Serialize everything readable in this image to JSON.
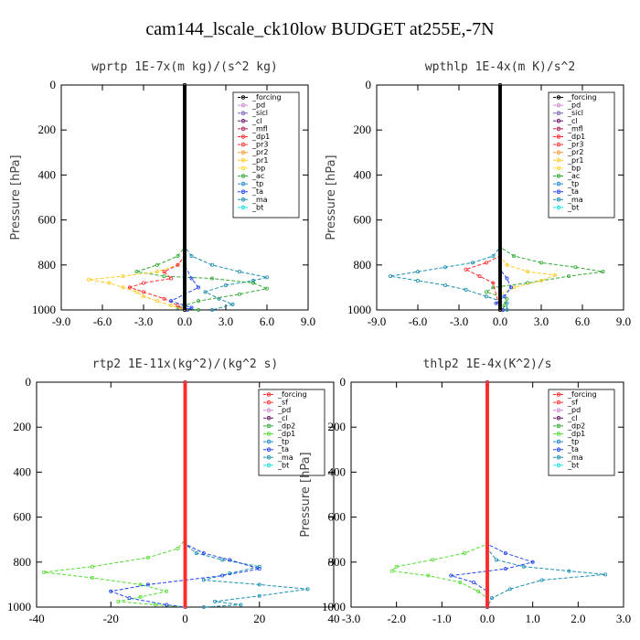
{
  "title": "cam144_lscale_ck10low  BUDGET at255E,-7N",
  "colors": {
    "forcing": "#000000",
    "pd": "#cc88cc",
    "sicl": "#7a5ab8",
    "cl": "#6a1a6a",
    "mfl": "#b0225a",
    "dp1": "#ff2a2a",
    "pr3": "#ff3a3a",
    "pr2": "#ff9933",
    "pr1": "#ffcc22",
    "bp": "#ffdd33",
    "ac": "#33aa33",
    "tp": "#2288cc",
    "ta": "#2244ee",
    "ma": "#1a8fb0",
    "bt": "#22dddd",
    "sf": "#ff3333",
    "dp2": "#33aa33",
    "dp1b": "#55dd33",
    "tp2": "#2288cc",
    "ta2": "#2233dd"
  },
  "chart_data": [
    {
      "type": "line",
      "title": "wprtp  1E-7x(m kg)/(s^2 kg)",
      "ylabel": "Pressure [hPa]",
      "xlim": [
        -9,
        9
      ],
      "ylim": [
        1000,
        0
      ],
      "xticks": [
        "-9.0",
        "-6.0",
        "-3.0",
        "0.0",
        "3.0",
        "6.0",
        "9.0"
      ],
      "yticks": [
        "0",
        "200",
        "400",
        "600",
        "800",
        "1000"
      ],
      "legend": [
        "_forcing",
        "_pd",
        "_sicl",
        "_cl",
        "_mfl",
        "_dp1",
        "_pr3",
        "_pr2",
        "_pr1",
        "_bp",
        "_ac",
        "_tp",
        "_ta",
        "_ma",
        "_bt"
      ],
      "legend_placement": "top-right",
      "series": [
        {
          "name": "_ma",
          "color": "#1a8fb0",
          "points": [
            [
              0,
              0
            ],
            [
              0,
              720
            ],
            [
              0.5,
              760
            ],
            [
              2.0,
              800
            ],
            [
              4.0,
              830
            ],
            [
              6.0,
              855
            ],
            [
              5.0,
              870
            ],
            [
              3.0,
              890
            ],
            [
              1.5,
              920
            ],
            [
              2.5,
              950
            ],
            [
              3.5,
              975
            ],
            [
              2.0,
              1000
            ]
          ]
        },
        {
          "name": "_ac",
          "color": "#33aa33",
          "points": [
            [
              0,
              0
            ],
            [
              0,
              720
            ],
            [
              -0.5,
              760
            ],
            [
              -2.0,
              800
            ],
            [
              -3.5,
              830
            ],
            [
              -1.5,
              850
            ],
            [
              2.0,
              860
            ],
            [
              5.0,
              880
            ],
            [
              6.0,
              905
            ],
            [
              4.0,
              930
            ],
            [
              1.0,
              960
            ],
            [
              -0.5,
              990
            ],
            [
              1.0,
              1000
            ]
          ]
        },
        {
          "name": "_pr1",
          "color": "#ffcc22",
          "points": [
            [
              0,
              0
            ],
            [
              0,
              760
            ],
            [
              -0.5,
              800
            ],
            [
              -2.0,
              830
            ],
            [
              -4.5,
              850
            ],
            [
              -7.0,
              865
            ],
            [
              -5.5,
              880
            ],
            [
              -4.5,
              900
            ],
            [
              -3.5,
              920
            ],
            [
              -3.0,
              940
            ],
            [
              -2.0,
              960
            ],
            [
              -1.0,
              980
            ],
            [
              0,
              1000
            ]
          ]
        },
        {
          "name": "_dp1",
          "color": "#ff2a2a",
          "points": [
            [
              0,
              0
            ],
            [
              0,
              760
            ],
            [
              -0.5,
              800
            ],
            [
              -1.5,
              830
            ],
            [
              -1.0,
              860
            ],
            [
              -3.0,
              880
            ],
            [
              -4.0,
              900
            ],
            [
              -3.0,
              920
            ],
            [
              -1.5,
              950
            ],
            [
              -0.5,
              980
            ],
            [
              0,
              1000
            ]
          ]
        },
        {
          "name": "_ta",
          "color": "#2244ee",
          "points": [
            [
              0,
              0
            ],
            [
              0,
              800
            ],
            [
              0.5,
              860
            ],
            [
              1.0,
              900
            ],
            [
              0.0,
              930
            ],
            [
              -1.0,
              960
            ],
            [
              0.5,
              990
            ],
            [
              0.2,
              1000
            ]
          ]
        },
        {
          "name": "_forcing",
          "color": "#000000",
          "points": [
            [
              0,
              0
            ],
            [
              0,
              1000
            ]
          ]
        }
      ]
    },
    {
      "type": "line",
      "title": "wpthlp  1E-4x(m K)/s^2",
      "ylabel": "Pressure [hPa]",
      "xlim": [
        -9,
        9
      ],
      "ylim": [
        1000,
        0
      ],
      "xticks": [
        "-9.0",
        "-6.0",
        "-3.0",
        "0.0",
        "3.0",
        "6.0",
        "9.0"
      ],
      "yticks": [
        "0",
        "200",
        "400",
        "600",
        "800",
        "1000"
      ],
      "legend": [
        "_forcing",
        "_pd",
        "_sicl",
        "_cl",
        "_mfl",
        "_dp1",
        "_pr3",
        "_pr2",
        "_pr1",
        "_bp",
        "_ac",
        "_tp",
        "_ta",
        "_ma",
        "_bt"
      ],
      "legend_placement": "top-right",
      "series": [
        {
          "name": "_ma",
          "color": "#1a8fb0",
          "points": [
            [
              0,
              0
            ],
            [
              0,
              720
            ],
            [
              -0.5,
              760
            ],
            [
              -2.0,
              790
            ],
            [
              -4.0,
              810
            ],
            [
              -6.0,
              830
            ],
            [
              -8.0,
              850
            ],
            [
              -6.0,
              870
            ],
            [
              -4.0,
              890
            ],
            [
              -2.5,
              910
            ],
            [
              -1.0,
              940
            ],
            [
              0.5,
              970
            ],
            [
              0.5,
              1000
            ]
          ]
        },
        {
          "name": "_ac",
          "color": "#33aa33",
          "points": [
            [
              0,
              0
            ],
            [
              0,
              720
            ],
            [
              1.0,
              760
            ],
            [
              3.0,
              790
            ],
            [
              5.5,
              810
            ],
            [
              7.5,
              830
            ],
            [
              5.0,
              850
            ],
            [
              2.0,
              880
            ],
            [
              -0.5,
              900
            ],
            [
              -1.0,
              920
            ],
            [
              0.5,
              950
            ],
            [
              0.3,
              980
            ],
            [
              0.2,
              1000
            ]
          ]
        },
        {
          "name": "_pr1",
          "color": "#ffcc22",
          "points": [
            [
              0,
              0
            ],
            [
              0,
              760
            ],
            [
              0.5,
              800
            ],
            [
              2.0,
              830
            ],
            [
              4.0,
              845
            ],
            [
              3.0,
              870
            ],
            [
              1.0,
              900
            ],
            [
              0,
              930
            ],
            [
              0,
              1000
            ]
          ]
        },
        {
          "name": "_dp1",
          "color": "#ff2a2a",
          "points": [
            [
              0,
              0
            ],
            [
              0,
              760
            ],
            [
              -1.0,
              790
            ],
            [
              -2.5,
              820
            ],
            [
              -1.5,
              850
            ],
            [
              -0.5,
              880
            ],
            [
              0,
              1000
            ]
          ]
        },
        {
          "name": "_ta",
          "color": "#2244ee",
          "points": [
            [
              0,
              0
            ],
            [
              0,
              820
            ],
            [
              0.5,
              860
            ],
            [
              0.8,
              900
            ],
            [
              0.3,
              940
            ],
            [
              -0.3,
              970
            ],
            [
              0.2,
              1000
            ]
          ]
        },
        {
          "name": "_forcing",
          "color": "#000000",
          "points": [
            [
              0,
              0
            ],
            [
              0,
              1000
            ]
          ]
        }
      ]
    },
    {
      "type": "line",
      "title": "rtp2  1E-11x(kg^2)/(kg^2 s)",
      "ylabel": "Pressure [hPa]",
      "xlim": [
        -40,
        40
      ],
      "ylim": [
        1000,
        0
      ],
      "xticks": [
        "-40",
        "-20",
        "0",
        "20",
        "40"
      ],
      "yticks": [
        "0",
        "200",
        "400",
        "600",
        "800",
        "1000"
      ],
      "legend": [
        "_forcing",
        "_sf",
        "_pd",
        "_cl",
        "_dp2",
        "_dp1",
        "_tp",
        "_ta",
        "_ma",
        "_bt"
      ],
      "legend_placement": "top-right",
      "series": [
        {
          "name": "_dp1",
          "color": "#55dd33",
          "points": [
            [
              0,
              0
            ],
            [
              0,
              700
            ],
            [
              -2,
              740
            ],
            [
              -10,
              780
            ],
            [
              -25,
              820
            ],
            [
              -38,
              845
            ],
            [
              -25,
              870
            ],
            [
              -12,
              900
            ],
            [
              -5,
              930
            ],
            [
              -12,
              955
            ],
            [
              -18,
              975
            ],
            [
              -8,
              990
            ],
            [
              0,
              1000
            ]
          ]
        },
        {
          "name": "_ma",
          "color": "#1a8fb0",
          "points": [
            [
              0,
              0
            ],
            [
              0,
              720
            ],
            [
              3,
              760
            ],
            [
              10,
              790
            ],
            [
              20,
              820
            ],
            [
              12,
              850
            ],
            [
              5,
              880
            ],
            [
              20,
              900
            ],
            [
              33,
              920
            ],
            [
              20,
              950
            ],
            [
              8,
              975
            ],
            [
              15,
              990
            ],
            [
              5,
              1000
            ]
          ]
        },
        {
          "name": "_ta",
          "color": "#2244ee",
          "points": [
            [
              0,
              0
            ],
            [
              0,
              720
            ],
            [
              5,
              760
            ],
            [
              12,
              790
            ],
            [
              20,
              830
            ],
            [
              10,
              860
            ],
            [
              0,
              880
            ],
            [
              -10,
              900
            ],
            [
              -20,
              930
            ],
            [
              -15,
              960
            ],
            [
              -5,
              990
            ],
            [
              0,
              1000
            ]
          ]
        },
        {
          "name": "_forcing",
          "color": "#ff2a2a",
          "points": [
            [
              0,
              0
            ],
            [
              0,
              1000
            ]
          ]
        }
      ]
    },
    {
      "type": "line",
      "title": "thlp2  1E-4x(K^2)/s",
      "ylabel": "Pressure [hPa]",
      "xlim": [
        -3,
        3
      ],
      "ylim": [
        1000,
        0
      ],
      "xticks": [
        "-3.0",
        "-2.0",
        "-1.0",
        "0.0",
        "1.0",
        "2.0",
        "3.0"
      ],
      "yticks": [
        "0",
        "200",
        "400",
        "600",
        "800",
        "1000"
      ],
      "legend": [
        "_forcing",
        "_sf",
        "_pd",
        "_cl",
        "_dp2",
        "_dp1",
        "_tp",
        "_ta",
        "_ma",
        "_bt"
      ],
      "legend_placement": "top-right",
      "series": [
        {
          "name": "_dp1",
          "color": "#55dd33",
          "points": [
            [
              0,
              0
            ],
            [
              0,
              720
            ],
            [
              -0.5,
              760
            ],
            [
              -1.2,
              790
            ],
            [
              -2.0,
              820
            ],
            [
              -2.1,
              840
            ],
            [
              -1.3,
              860
            ],
            [
              -0.6,
              890
            ],
            [
              -0.2,
              930
            ],
            [
              0,
              960
            ],
            [
              0,
              1000
            ]
          ]
        },
        {
          "name": "_ma",
          "color": "#1a8fb0",
          "points": [
            [
              0,
              0
            ],
            [
              0,
              740
            ],
            [
              0.2,
              790
            ],
            [
              0.8,
              820
            ],
            [
              1.8,
              840
            ],
            [
              2.6,
              855
            ],
            [
              1.2,
              880
            ],
            [
              0.5,
              920
            ],
            [
              0.1,
              960
            ],
            [
              0,
              1000
            ]
          ]
        },
        {
          "name": "_ta",
          "color": "#2244ee",
          "points": [
            [
              0,
              0
            ],
            [
              0,
              720
            ],
            [
              0.4,
              760
            ],
            [
              1.0,
              800
            ],
            [
              0.4,
              830
            ],
            [
              -0.8,
              860
            ],
            [
              -0.3,
              890
            ],
            [
              0,
              930
            ],
            [
              0,
              1000
            ]
          ]
        },
        {
          "name": "_forcing",
          "color": "#ff2a2a",
          "points": [
            [
              0,
              0
            ],
            [
              0,
              1000
            ]
          ]
        }
      ]
    }
  ]
}
